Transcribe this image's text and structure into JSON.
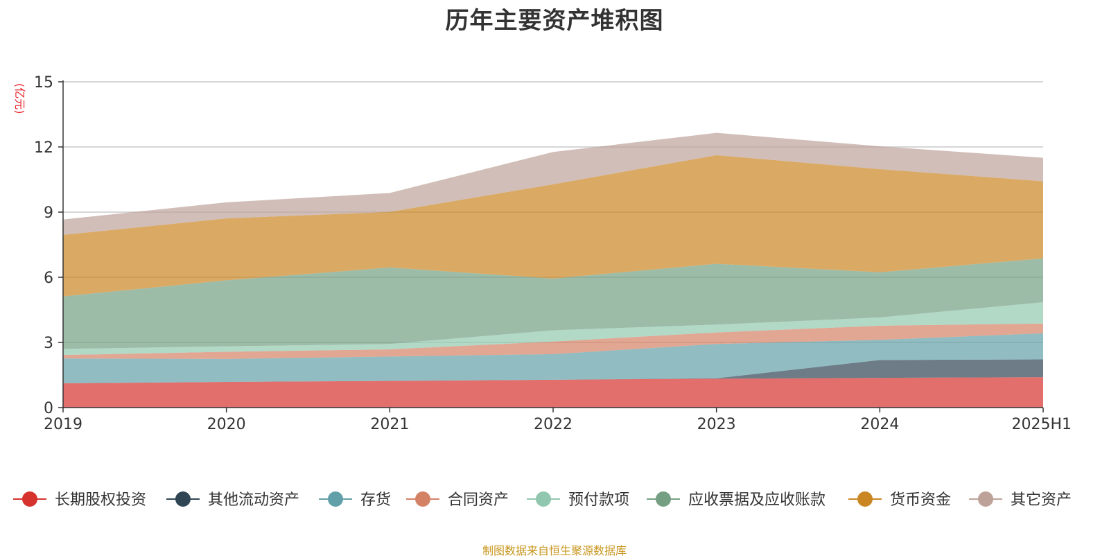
{
  "title": "历年主要资产堆积图",
  "source_note": "制图数据来自恒生聚源数据库",
  "chart_data": {
    "type": "area",
    "stacked": true,
    "title": "历年主要资产堆积图",
    "ylabel": "(亿元)",
    "xlabel": "",
    "ylim": [
      0,
      15
    ],
    "yticks": [
      0,
      3,
      6,
      9,
      12,
      15
    ],
    "grid": true,
    "legend_position": "bottom",
    "x": [
      "2019",
      "2020",
      "2021",
      "2022",
      "2023",
      "2024",
      "2025H1"
    ],
    "series": [
      {
        "name": "长期股权投资",
        "color": "#d6322e",
        "values": [
          1.12,
          1.18,
          1.23,
          1.28,
          1.33,
          1.37,
          1.4
        ]
      },
      {
        "name": "其他流动资产",
        "color": "#2f4554",
        "values": [
          0.0,
          0.0,
          0.0,
          0.0,
          0.02,
          0.82,
          0.82
        ]
      },
      {
        "name": "存货",
        "color": "#61a0a8",
        "values": [
          1.14,
          1.06,
          1.12,
          1.18,
          1.58,
          0.93,
          1.2
        ]
      },
      {
        "name": "合同资产",
        "color": "#d48265",
        "values": [
          0.16,
          0.33,
          0.33,
          0.58,
          0.53,
          0.65,
          0.45
        ]
      },
      {
        "name": "预付款项",
        "color": "#91c7ae",
        "values": [
          0.28,
          0.25,
          0.25,
          0.52,
          0.36,
          0.38,
          0.98
        ]
      },
      {
        "name": "应收票据及应收账款",
        "color": "#749f83",
        "values": [
          2.42,
          3.04,
          3.52,
          2.38,
          2.8,
          2.08,
          2.02
        ]
      },
      {
        "name": "货币资金",
        "color": "#ca8622",
        "values": [
          2.83,
          2.85,
          2.56,
          4.34,
          5.0,
          4.75,
          3.55
        ]
      },
      {
        "name": "其它资产",
        "color": "#bda29a",
        "values": [
          0.71,
          0.74,
          0.87,
          1.49,
          1.03,
          1.05,
          1.08
        ]
      }
    ]
  }
}
